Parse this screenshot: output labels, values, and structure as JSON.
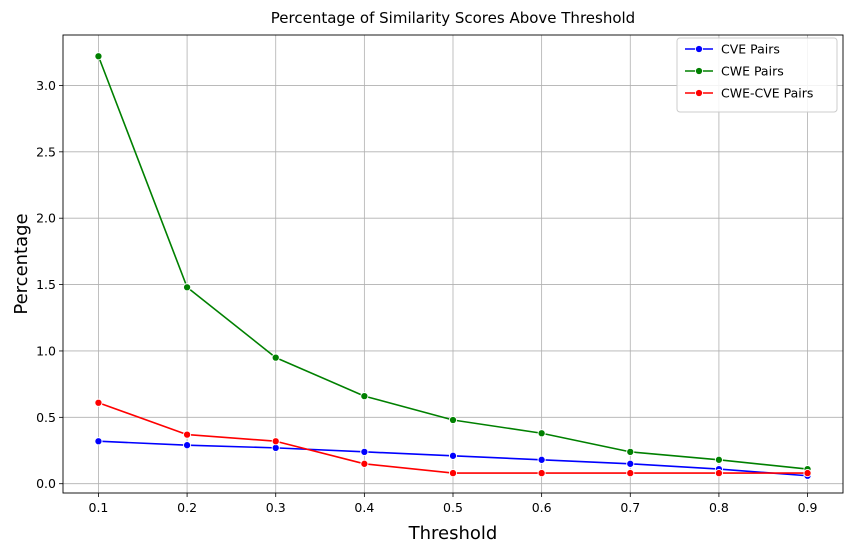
{
  "chart_data": {
    "type": "line",
    "title": "Percentage of Similarity Scores Above Threshold",
    "xlabel": "Threshold",
    "ylabel": "Percentage",
    "x": [
      0.1,
      0.2,
      0.3,
      0.4,
      0.5,
      0.6,
      0.7,
      0.8,
      0.9
    ],
    "x_tick_labels": [
      "0.1",
      "0.2",
      "0.3",
      "0.4",
      "0.5",
      "0.6",
      "0.7",
      "0.8",
      "0.9"
    ],
    "y_ticks": [
      0.0,
      0.5,
      1.0,
      1.5,
      2.0,
      2.5,
      3.0
    ],
    "y_tick_labels": [
      "0.0",
      "0.5",
      "1.0",
      "1.5",
      "2.0",
      "2.5",
      "3.0"
    ],
    "xlim": [
      0.06,
      0.94
    ],
    "ylim": [
      -0.07,
      3.38
    ],
    "grid": true,
    "legend_position": "top-right",
    "series": [
      {
        "name": "CVE Pairs",
        "color": "#0000ff",
        "values": [
          0.32,
          0.29,
          0.27,
          0.24,
          0.21,
          0.18,
          0.15,
          0.11,
          0.06
        ]
      },
      {
        "name": "CWE Pairs",
        "color": "#008000",
        "values": [
          3.22,
          1.48,
          0.95,
          0.66,
          0.48,
          0.38,
          0.24,
          0.18,
          0.11
        ]
      },
      {
        "name": "CWE-CVE Pairs",
        "color": "#ff0000",
        "values": [
          0.61,
          0.37,
          0.32,
          0.15,
          0.08,
          0.08,
          0.08,
          0.08,
          0.08
        ]
      }
    ]
  }
}
